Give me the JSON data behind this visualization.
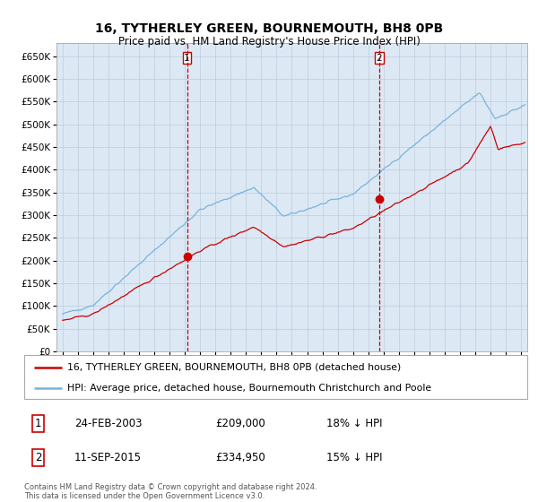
{
  "title": "16, TYTHERLEY GREEN, BOURNEMOUTH, BH8 0PB",
  "subtitle": "Price paid vs. HM Land Registry's House Price Index (HPI)",
  "legend_line1": "16, TYTHERLEY GREEN, BOURNEMOUTH, BH8 0PB (detached house)",
  "legend_line2": "HPI: Average price, detached house, Bournemouth Christchurch and Poole",
  "annotation1_date": "24-FEB-2003",
  "annotation1_price": "£209,000",
  "annotation1_hpi": "18% ↓ HPI",
  "annotation2_date": "11-SEP-2015",
  "annotation2_price": "£334,950",
  "annotation2_hpi": "15% ↓ HPI",
  "footer": "Contains HM Land Registry data © Crown copyright and database right 2024.\nThis data is licensed under the Open Government Licence v3.0.",
  "hpi_color": "#7ab3d9",
  "price_color": "#cc0000",
  "dot_color": "#cc0000",
  "vline_color": "#cc0000",
  "bg_color": "#dce9f5",
  "grid_color": "#bbccdd",
  "ylim": [
    0,
    680000
  ],
  "yticks": [
    0,
    50000,
    100000,
    150000,
    200000,
    250000,
    300000,
    350000,
    400000,
    450000,
    500000,
    550000,
    600000,
    650000
  ],
  "sale1_year": 2003.14,
  "sale1_price": 209000,
  "sale2_year": 2015.7,
  "sale2_price": 334950,
  "xlim_left": 1994.6,
  "xlim_right": 2025.4
}
